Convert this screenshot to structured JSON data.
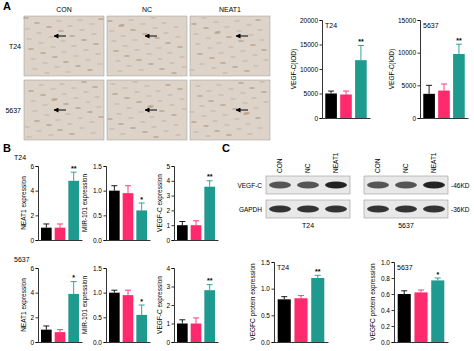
{
  "panel_labels": [
    "A",
    "B",
    "C"
  ],
  "ihc": {
    "columns": [
      "CON",
      "NC",
      "NEAT1"
    ],
    "rows": [
      "T24",
      "5637"
    ]
  },
  "b_rows": [
    "T24",
    "5637"
  ],
  "blot": {
    "lanes": [
      "CON",
      "NC",
      "NEAT1"
    ],
    "cell_lines": [
      "T24",
      "5637"
    ],
    "bands": [
      {
        "name": "VEGF-C",
        "size": "-46KD"
      },
      {
        "name": "GAPDH",
        "size": "-36KD"
      }
    ]
  },
  "chart_data": [
    {
      "type": "bar",
      "title": "T24",
      "y_label": "VEGF-C(IOD)",
      "categories": [
        null,
        null,
        null
      ],
      "values": [
        5000,
        4800,
        11800
      ],
      "errors": [
        500,
        700,
        3000
      ],
      "colors": [
        "#000000",
        "#ff2a6d",
        "#1f9a8e"
      ],
      "ylim": [
        0,
        20000
      ],
      "yticks": [
        0,
        5000,
        10000,
        15000,
        20000
      ],
      "tick_labels": "y",
      "annotations": [
        {
          "index": 2,
          "text": "**"
        }
      ]
    },
    {
      "type": "bar",
      "title": "5637",
      "y_label": "VEGF-C(IOD)",
      "categories": [
        null,
        null,
        null
      ],
      "values": [
        3700,
        4200,
        9800
      ],
      "errors": [
        1300,
        1000,
        1500
      ],
      "colors": [
        "#000000",
        "#ff2a6d",
        "#1f9a8e"
      ],
      "ylim": [
        0,
        15000
      ],
      "yticks": [
        0,
        5000,
        10000,
        15000
      ],
      "tick_labels": "y",
      "annotations": [
        {
          "index": 2,
          "text": "**"
        }
      ]
    },
    {
      "type": "bar",
      "y_label": "NEAT1 expression",
      "categories": [
        null,
        null,
        null
      ],
      "values": [
        1.0,
        1.0,
        4.8
      ],
      "errors": [
        0.3,
        0.3,
        0.7
      ],
      "colors": [
        "#000000",
        "#ff2a6d",
        "#1f9a8e"
      ],
      "ylim": [
        0,
        6
      ],
      "yticks": [
        0,
        2,
        4,
        6
      ],
      "tick_labels": "y",
      "annotations": [
        {
          "index": 2,
          "text": "**"
        }
      ]
    },
    {
      "type": "bar",
      "y_label": "MIR-101 expression",
      "categories": [
        null,
        null,
        null
      ],
      "values": [
        1.0,
        0.95,
        0.6
      ],
      "errors": [
        0.1,
        0.15,
        0.15
      ],
      "colors": [
        "#000000",
        "#ff2a6d",
        "#1f9a8e"
      ],
      "ylim": [
        0,
        1.5
      ],
      "yticks": [
        {
          "value": 0,
          "label": "0.0"
        },
        {
          "value": 0.5,
          "label": "0.5"
        },
        {
          "value": 1,
          "label": "1.0"
        },
        {
          "value": 1.5,
          "label": "1.5"
        }
      ],
      "tick_labels": "y",
      "annotations": [
        {
          "index": 2,
          "text": "*"
        }
      ]
    },
    {
      "type": "bar",
      "y_label": "VEGF-C expression",
      "categories": [
        null,
        null,
        null
      ],
      "values": [
        1.0,
        1.0,
        3.6
      ],
      "errors": [
        0.25,
        0.3,
        0.4
      ],
      "colors": [
        "#000000",
        "#ff2a6d",
        "#1f9a8e"
      ],
      "ylim": [
        0,
        5
      ],
      "yticks": [
        0,
        1,
        2,
        3,
        4,
        5
      ],
      "tick_labels": "y",
      "annotations": [
        {
          "index": 2,
          "text": "**"
        }
      ]
    },
    {
      "type": "bar",
      "y_label": "NEAT1 expression",
      "categories": [
        null,
        null,
        null
      ],
      "values": [
        1.0,
        0.8,
        3.9
      ],
      "errors": [
        0.3,
        0.2,
        1.0
      ],
      "colors": [
        "#000000",
        "#ff2a6d",
        "#1f9a8e"
      ],
      "ylim": [
        0,
        6
      ],
      "yticks": [
        0,
        2,
        4,
        6
      ],
      "tick_labels": "y",
      "annotations": [
        {
          "index": 2,
          "text": "*"
        }
      ]
    },
    {
      "type": "bar",
      "y_label": "MIR-101 expression",
      "categories": [
        null,
        null,
        null
      ],
      "values": [
        1.0,
        0.95,
        0.55
      ],
      "errors": [
        0.05,
        0.1,
        0.2
      ],
      "colors": [
        "#000000",
        "#ff2a6d",
        "#1f9a8e"
      ],
      "ylim": [
        0,
        1.5
      ],
      "yticks": [
        {
          "value": 0,
          "label": "0.0"
        },
        {
          "value": 0.5,
          "label": "0.5"
        },
        {
          "value": 1,
          "label": "1.0"
        },
        {
          "value": 1.5,
          "label": "1.5"
        }
      ],
      "tick_labels": "y",
      "annotations": [
        {
          "index": 2,
          "text": "*"
        }
      ]
    },
    {
      "type": "bar",
      "y_label": "VEGF-C expression",
      "categories": [
        null,
        null,
        null
      ],
      "values": [
        1.0,
        1.0,
        2.8
      ],
      "errors": [
        0.2,
        0.3,
        0.3
      ],
      "colors": [
        "#000000",
        "#ff2a6d",
        "#1f9a8e"
      ],
      "ylim": [
        0,
        4
      ],
      "yticks": [
        0,
        1,
        2,
        3,
        4
      ],
      "tick_labels": "y",
      "annotations": [
        {
          "index": 2,
          "text": "**"
        }
      ]
    },
    {
      "type": "bar",
      "title": "T24",
      "y_label": "VEGFC protein expression",
      "categories": [
        null,
        null,
        null
      ],
      "values": [
        0.8,
        0.82,
        1.2
      ],
      "errors": [
        0.05,
        0.05,
        0.05
      ],
      "colors": [
        "#000000",
        "#ff2a6d",
        "#1f9a8e"
      ],
      "ylim": [
        0,
        1.5
      ],
      "yticks": [
        {
          "value": 0,
          "label": "0.0"
        },
        {
          "value": 0.5,
          "label": "0.5"
        },
        {
          "value": 1,
          "label": "1.0"
        },
        {
          "value": 1.5,
          "label": "1.5"
        }
      ],
      "tick_labels": "y",
      "annotations": [
        {
          "index": 2,
          "text": "**"
        }
      ]
    },
    {
      "type": "bar",
      "title": "5637",
      "y_label": "VEGFC protein expression",
      "categories": [
        null,
        null,
        null
      ],
      "values": [
        0.6,
        0.62,
        0.77
      ],
      "errors": [
        0.04,
        0.03,
        0.03
      ],
      "colors": [
        "#000000",
        "#ff2a6d",
        "#1f9a8e"
      ],
      "ylim": [
        0,
        1.0
      ],
      "yticks": [
        {
          "value": 0,
          "label": "0.0"
        },
        {
          "value": 0.2,
          "label": "0.2"
        },
        {
          "value": 0.4,
          "label": "0.4"
        },
        {
          "value": 0.6,
          "label": "0.6"
        },
        {
          "value": 0.8,
          "label": "0.8"
        },
        {
          "value": 1,
          "label": "1.0"
        }
      ],
      "tick_labels": "y",
      "annotations": [
        {
          "index": 2,
          "text": "*"
        }
      ]
    }
  ]
}
